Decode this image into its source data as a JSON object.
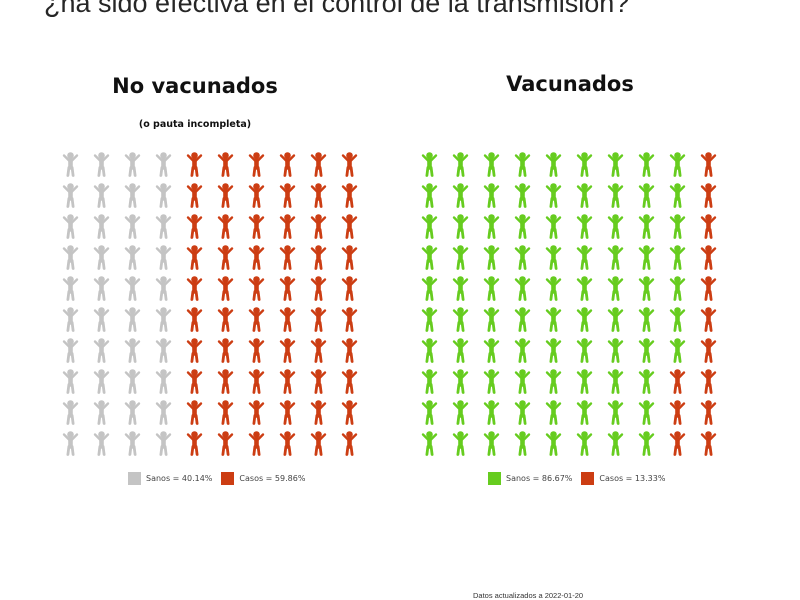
{
  "slide": {
    "title": "¿ha sido efectiva en el control de la transmisión?",
    "footnote": "Datos actualizados a 2022-01-20"
  },
  "chart_data": [
    {
      "type": "waffle",
      "title": "No vacunados",
      "subtitle": "(o pauta incompleta)",
      "rows": 10,
      "cols": 10,
      "fill_order": "column-wise, left to right",
      "series": [
        {
          "name": "Sanos",
          "value": 40.14,
          "label": "Sanos = 40.14%",
          "color": "#c4c4c4",
          "icons": 40
        },
        {
          "name": "Casos",
          "value": 59.86,
          "label": "Casos = 59.86%",
          "color": "#cc3d13",
          "icons": 60
        }
      ],
      "legend_position": "bottom"
    },
    {
      "type": "waffle",
      "title": "Vacunados",
      "rows": 10,
      "cols": 10,
      "fill_order": "column-wise, left to right",
      "series": [
        {
          "name": "Sanos",
          "value": 86.67,
          "label": "Sanos = 86.67%",
          "color": "#66cc1f",
          "icons": 87
        },
        {
          "name": "Casos",
          "value": 13.33,
          "label": "Casos = 13.33%",
          "color": "#cc3d13",
          "icons": 13
        }
      ],
      "legend_position": "bottom"
    }
  ]
}
